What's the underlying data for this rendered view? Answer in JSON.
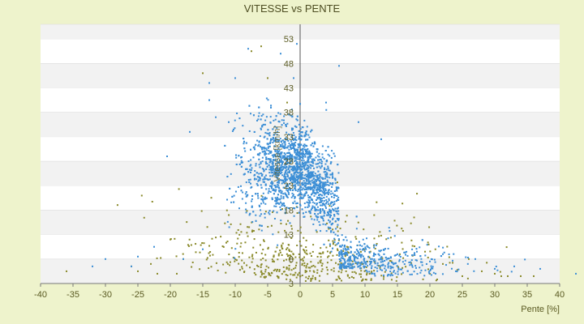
{
  "chart_data": {
    "type": "scatter",
    "title": "VITESSE vs PENTE",
    "xlabel": "Pente [%]",
    "ylabel": "Vitesse [km/h]",
    "xlim": [
      -40,
      40
    ],
    "ylim": [
      3,
      56
    ],
    "x_ticks": [
      -40,
      -35,
      -30,
      -25,
      -20,
      -15,
      -10,
      -5,
      0,
      5,
      10,
      15,
      20,
      25,
      30,
      35,
      40
    ],
    "y_ticks": [
      3,
      8,
      13,
      18,
      23,
      28,
      33,
      38,
      43,
      48,
      53
    ],
    "grid": "horizontal bands",
    "legend": "none",
    "series": [
      {
        "color": "#3d8fd6",
        "cloud": {
          "center_x": 0,
          "center_y": 25,
          "count": 2600
        },
        "values": [
          [
            -0.5,
            52
          ],
          [
            -8,
            51
          ],
          [
            -3,
            50
          ],
          [
            6,
            47.5
          ],
          [
            -1,
            45
          ],
          [
            -14,
            44
          ],
          [
            -10,
            45
          ],
          [
            -14,
            40.5
          ],
          [
            4,
            40
          ],
          [
            -13,
            37
          ],
          [
            -11,
            36
          ],
          [
            9,
            36
          ],
          [
            12.5,
            32.5
          ],
          [
            -17,
            34
          ],
          [
            -20.5,
            29
          ],
          [
            -22.5,
            10.5
          ],
          [
            -25,
            8.5
          ],
          [
            -32,
            6.5
          ],
          [
            -30,
            8
          ],
          [
            -26,
            6.5
          ],
          [
            15,
            9
          ],
          [
            18,
            9.5
          ],
          [
            22,
            9
          ],
          [
            27,
            8
          ],
          [
            30,
            6
          ],
          [
            33,
            6.5
          ],
          [
            37,
            6
          ],
          [
            42.5,
            5
          ],
          [
            20,
            7.5
          ],
          [
            24,
            5.5
          ],
          [
            -18,
            8
          ],
          [
            -15,
            10
          ]
        ]
      },
      {
        "color": "#8a8a2a",
        "cloud": {
          "center_x": 0,
          "center_y": 9,
          "count": 500
        },
        "values": [
          [
            -7.5,
            50.5
          ],
          [
            -6,
            51.5
          ],
          [
            -5,
            45
          ],
          [
            -15,
            46
          ],
          [
            -2,
            40
          ],
          [
            -36,
            5.5
          ],
          [
            -26,
            6.5
          ],
          [
            -25,
            5.5
          ],
          [
            -23,
            7
          ],
          [
            -20,
            12
          ],
          [
            -18,
            8
          ],
          [
            -22,
            5
          ],
          [
            -19,
            5
          ],
          [
            20,
            5
          ],
          [
            25,
            4.5
          ],
          [
            28,
            5.5
          ],
          [
            31,
            4.5
          ],
          [
            34,
            4.5
          ],
          [
            36,
            4.5
          ],
          [
            22,
            7
          ],
          [
            26,
            8
          ],
          [
            30,
            5
          ],
          [
            32,
            4.5
          ]
        ]
      }
    ]
  }
}
